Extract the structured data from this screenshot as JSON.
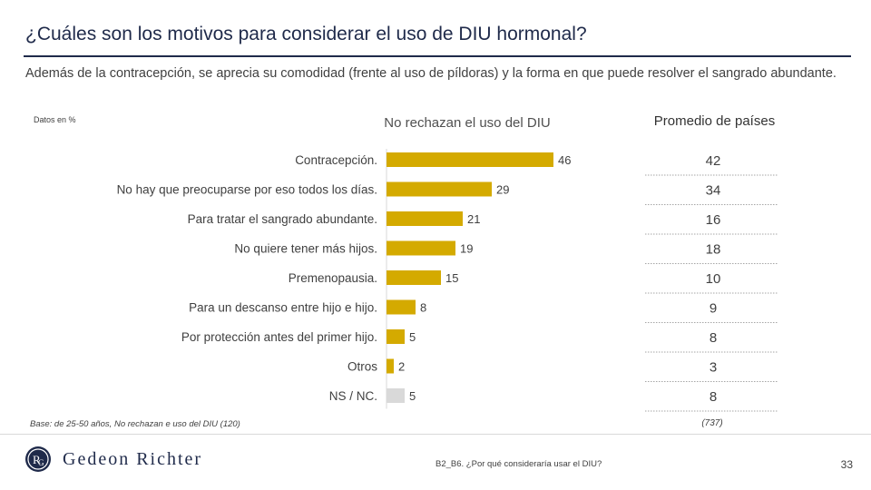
{
  "slide": {
    "title": "¿Cuáles son los motivos para considerar el uso de DIU hormonal?",
    "subtitle": "Además de la contracepción, se aprecia su comodidad (frente al uso de píldoras) y la forma en que puede resolver el sangrado abundante.",
    "units_note": "Datos en %",
    "base_note": "Base: de 25-50 años, No rechazan e uso del DIU (120)",
    "avg_base": "(737)",
    "question": "B2_B6. ¿Por qué consideraría usar el DIU?",
    "page_number": "33",
    "logo_text": "Gedeon Richter",
    "logo_icon": "gedeon-richter-monogram-icon"
  },
  "chart_data": {
    "type": "bar",
    "orientation": "horizontal",
    "title": "No rechazan el uso del DIU",
    "xlim": [
      0,
      50
    ],
    "grid": false,
    "categories": [
      "Contracepción.",
      "No hay que preocuparse por eso todos los días.",
      "Para tratar el sangrado abundante.",
      "No quiere tener más hijos.",
      "Premenopausia.",
      "Para un descanso entre hijo e hijo.",
      "Por protección antes del primer hijo.",
      "Otros",
      "NS / NC."
    ],
    "values": [
      46,
      29,
      21,
      19,
      15,
      8,
      5,
      2,
      5
    ],
    "colors": [
      "#d4aa00",
      "#d4aa00",
      "#d4aa00",
      "#d4aa00",
      "#d4aa00",
      "#d4aa00",
      "#d4aa00",
      "#d4aa00",
      "#d9d9d9"
    ],
    "average_column": {
      "title": "Promedio de países",
      "values": [
        42,
        34,
        16,
        18,
        10,
        9,
        8,
        3,
        8
      ]
    }
  }
}
